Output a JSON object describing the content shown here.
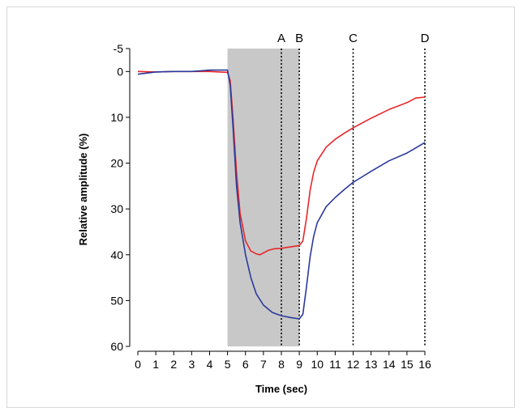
{
  "chart_data": {
    "type": "line",
    "xlabel": "Time (sec)",
    "ylabel": "Relative amplitude (%)",
    "xlim": [
      0,
      16
    ],
    "ylim": [
      -5,
      60
    ],
    "y_inverted": true,
    "x_ticks": [
      {
        "value": 0,
        "label": "0"
      },
      {
        "value": 1,
        "label": "1"
      },
      {
        "value": 2,
        "label": "2"
      },
      {
        "value": 3,
        "label": "3"
      },
      {
        "value": 4,
        "label": "4"
      },
      {
        "value": 5,
        "label": "5"
      },
      {
        "value": 6,
        "label": "6"
      },
      {
        "value": 7,
        "label": "7"
      },
      {
        "value": 8,
        "label": "8"
      },
      {
        "value": 9,
        "label": "9"
      },
      {
        "value": 10,
        "label": "10"
      },
      {
        "value": 11,
        "label": "11"
      },
      {
        "value": 12,
        "label": "12"
      },
      {
        "value": 13,
        "label": "13"
      },
      {
        "value": 14,
        "label": "14"
      },
      {
        "value": 15,
        "label": "15"
      },
      {
        "value": 16,
        "label": "16"
      }
    ],
    "y_ticks": [
      {
        "value": -5,
        "label": "-5"
      },
      {
        "value": 0,
        "label": "0"
      },
      {
        "value": 10,
        "label": "10"
      },
      {
        "value": 20,
        "label": "20"
      },
      {
        "value": 30,
        "label": "30"
      },
      {
        "value": 40,
        "label": "40"
      },
      {
        "value": 50,
        "label": "50"
      },
      {
        "value": 60,
        "label": "60"
      }
    ],
    "shaded_region": {
      "x": [
        5,
        9
      ],
      "color": "#c8c8c8"
    },
    "markers": [
      {
        "label": "A",
        "x": 8
      },
      {
        "label": "B",
        "x": 9
      },
      {
        "label": "C",
        "x": 12
      },
      {
        "label": "D",
        "x": 16
      }
    ],
    "grid": false,
    "series": [
      {
        "color": "#e8262a",
        "points": [
          [
            0,
            0.0
          ],
          [
            1,
            0.1
          ],
          [
            2,
            0.0
          ],
          [
            3,
            0.0
          ],
          [
            4,
            0.0
          ],
          [
            5,
            0.2
          ],
          [
            5.15,
            2
          ],
          [
            5.3,
            10
          ],
          [
            5.5,
            22
          ],
          [
            5.7,
            31
          ],
          [
            6.0,
            37
          ],
          [
            6.3,
            39.2
          ],
          [
            6.6,
            39.8
          ],
          [
            6.8,
            40.0
          ],
          [
            7.0,
            39.6
          ],
          [
            7.3,
            39.0
          ],
          [
            7.6,
            38.7
          ],
          [
            8.0,
            38.6
          ],
          [
            8.5,
            38.3
          ],
          [
            9.0,
            38.0
          ],
          [
            9.2,
            37.0
          ],
          [
            9.4,
            32.0
          ],
          [
            9.6,
            26.0
          ],
          [
            9.8,
            22.0
          ],
          [
            10.0,
            19.5
          ],
          [
            10.5,
            16.5
          ],
          [
            11.0,
            14.8
          ],
          [
            11.5,
            13.5
          ],
          [
            12.0,
            12.3
          ],
          [
            13.0,
            10.2
          ],
          [
            14.0,
            8.3
          ],
          [
            15.0,
            6.8
          ],
          [
            15.5,
            5.8
          ],
          [
            16.0,
            5.6
          ]
        ]
      },
      {
        "color": "#2a3a9c",
        "points": [
          [
            0,
            0.6
          ],
          [
            1,
            0.1
          ],
          [
            2,
            0.0
          ],
          [
            3,
            0.0
          ],
          [
            4,
            -0.3
          ],
          [
            5,
            -0.3
          ],
          [
            5.15,
            3
          ],
          [
            5.3,
            12
          ],
          [
            5.5,
            25
          ],
          [
            5.7,
            33
          ],
          [
            6.0,
            40
          ],
          [
            6.3,
            45
          ],
          [
            6.6,
            48.5
          ],
          [
            7.0,
            51
          ],
          [
            7.5,
            52.6
          ],
          [
            8.0,
            53.3
          ],
          [
            8.5,
            53.7
          ],
          [
            9.0,
            54.0
          ],
          [
            9.2,
            53.0
          ],
          [
            9.4,
            47.0
          ],
          [
            9.6,
            40.5
          ],
          [
            9.8,
            36.0
          ],
          [
            10.0,
            33.0
          ],
          [
            10.5,
            29.5
          ],
          [
            11.0,
            27.5
          ],
          [
            11.5,
            25.8
          ],
          [
            12.0,
            24.2
          ],
          [
            12.5,
            23.0
          ],
          [
            13.0,
            21.8
          ],
          [
            14.0,
            19.5
          ],
          [
            15.0,
            17.8
          ],
          [
            16.0,
            15.5
          ]
        ]
      }
    ]
  }
}
